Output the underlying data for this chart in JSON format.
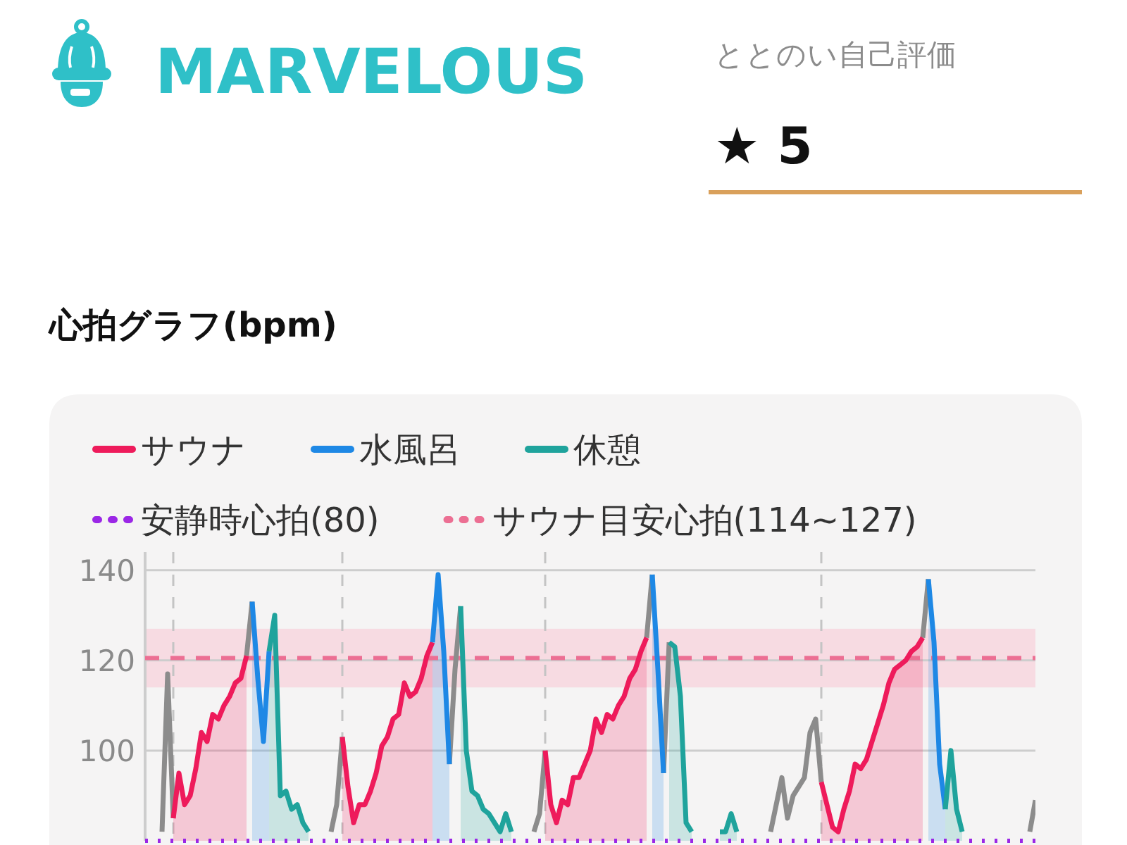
{
  "chart_data": {
    "type": "area",
    "title": "心拍グラフ(bpm)",
    "annotations": [
      "MARVELOUS",
      "ととのい自己評価",
      "★ 5"
    ],
    "categories": [
      null,
      null,
      null,
      null,
      null,
      null,
      null,
      null,
      null,
      null,
      null,
      null,
      null,
      null,
      null,
      null,
      null,
      null,
      null,
      null,
      null,
      null,
      null,
      null,
      null,
      null,
      null,
      null,
      null,
      null,
      null,
      null,
      null,
      null,
      null,
      null,
      null,
      null,
      null,
      null,
      null,
      null,
      null,
      null,
      null,
      null,
      null,
      null,
      null,
      null,
      null,
      null,
      null,
      null,
      null,
      null,
      null,
      null,
      null,
      null,
      null,
      null,
      null,
      null,
      null,
      null,
      null,
      null,
      null,
      null,
      null,
      null,
      null,
      null,
      null,
      null,
      null,
      null,
      null,
      null,
      null,
      null,
      null,
      null,
      null,
      null,
      null,
      null,
      null,
      null,
      null,
      null,
      null,
      null,
      null,
      null,
      null,
      null,
      null,
      null,
      null,
      null,
      null,
      null,
      null,
      null,
      null,
      null,
      null,
      null,
      null,
      null,
      null,
      null,
      null,
      null,
      null,
      null,
      null,
      null,
      null,
      null,
      null,
      null,
      null,
      null,
      null,
      null,
      null,
      null,
      null,
      null,
      null,
      null,
      null,
      null,
      null,
      null,
      null,
      null,
      null,
      null,
      null,
      null,
      null,
      null,
      null,
      null,
      null,
      null,
      null,
      null,
      null,
      null,
      null,
      null,
      null,
      null,
      null
    ],
    "series": [
      {
        "type": "line",
        "color": "#8c8c8c",
        "values": [
          null,
          null,
          null,
          82,
          117,
          85,
          null,
          null,
          null,
          null,
          null,
          null,
          null,
          null,
          null,
          null,
          null,
          null,
          121,
          133,
          null,
          null,
          null,
          null,
          null,
          null,
          null,
          null,
          null,
          null,
          null,
          null,
          null,
          82,
          88,
          103,
          null,
          null,
          null,
          null,
          null,
          null,
          null,
          null,
          null,
          null,
          null,
          null,
          null,
          null,
          null,
          null,
          null,
          null,
          97,
          118,
          132,
          null,
          null,
          null,
          null,
          null,
          null,
          null,
          null,
          null,
          null,
          null,
          null,
          82,
          86,
          100,
          null,
          null,
          null,
          null,
          null,
          null,
          null,
          null,
          null,
          null,
          null,
          null,
          null,
          null,
          null,
          null,
          null,
          125,
          139,
          null,
          95,
          124,
          null,
          null,
          null,
          null,
          null,
          null,
          null,
          null,
          null,
          null,
          null,
          null,
          null,
          null,
          null,
          null,
          null,
          82,
          88,
          94,
          85,
          90,
          92,
          94,
          104,
          107,
          93,
          null,
          null,
          null,
          null,
          null,
          null,
          null,
          null,
          null,
          null,
          null,
          null,
          null,
          null,
          null,
          null,
          null,
          125,
          138,
          null,
          null,
          null,
          null,
          null,
          null,
          null,
          null,
          null,
          null,
          null,
          null,
          null,
          null,
          null,
          null,
          null,
          82,
          89
        ]
      },
      {
        "name": "サウナ",
        "color": "#ee1b5b",
        "values": [
          null,
          null,
          null,
          null,
          null,
          85,
          95,
          88,
          90,
          96,
          104,
          102,
          108,
          107,
          110,
          112,
          115,
          116,
          121,
          null,
          null,
          null,
          null,
          null,
          null,
          null,
          null,
          null,
          null,
          null,
          null,
          null,
          null,
          null,
          null,
          103,
          92,
          84,
          88,
          88,
          91,
          95,
          101,
          103,
          107,
          108,
          115,
          112,
          113,
          116,
          121,
          124,
          null,
          null,
          null,
          null,
          null,
          null,
          null,
          null,
          null,
          null,
          null,
          null,
          null,
          null,
          null,
          null,
          null,
          null,
          null,
          100,
          88,
          84,
          89,
          88,
          94,
          94,
          97,
          100,
          107,
          104,
          108,
          107,
          110,
          112,
          116,
          118,
          122,
          125,
          null,
          null,
          null,
          null,
          null,
          null,
          null,
          null,
          null,
          null,
          null,
          null,
          null,
          null,
          null,
          null,
          null,
          null,
          null,
          null,
          null,
          null,
          null,
          null,
          null,
          null,
          null,
          null,
          null,
          null,
          93,
          88,
          83,
          82,
          87,
          91,
          97,
          96,
          98,
          102,
          106,
          110,
          115,
          118,
          119,
          120,
          122,
          123,
          125,
          null,
          null,
          null,
          null,
          null,
          null,
          null,
          null,
          null,
          null,
          null,
          null,
          null,
          null,
          null,
          null,
          null,
          null,
          null,
          null
        ]
      },
      {
        "name": "水風呂",
        "color": "#1e88e5",
        "values": [
          null,
          null,
          null,
          null,
          null,
          null,
          null,
          null,
          null,
          null,
          null,
          null,
          null,
          null,
          null,
          null,
          null,
          null,
          null,
          133,
          116,
          102,
          122,
          null,
          null,
          null,
          null,
          null,
          null,
          null,
          null,
          null,
          null,
          null,
          null,
          null,
          null,
          null,
          null,
          null,
          null,
          null,
          null,
          null,
          null,
          null,
          null,
          null,
          null,
          null,
          null,
          124,
          139,
          122,
          97,
          null,
          null,
          null,
          null,
          null,
          null,
          null,
          null,
          null,
          null,
          null,
          null,
          null,
          null,
          null,
          null,
          null,
          null,
          null,
          null,
          null,
          null,
          null,
          null,
          null,
          null,
          null,
          null,
          null,
          null,
          null,
          null,
          null,
          null,
          null,
          139,
          118,
          95,
          null,
          null,
          null,
          null,
          null,
          null,
          null,
          null,
          null,
          null,
          null,
          null,
          null,
          null,
          null,
          null,
          null,
          null,
          null,
          null,
          null,
          null,
          null,
          null,
          null,
          null,
          null,
          null,
          null,
          null,
          null,
          null,
          null,
          null,
          null,
          null,
          null,
          null,
          null,
          null,
          null,
          null,
          null,
          null,
          null,
          null,
          138,
          124,
          97,
          87,
          null,
          null,
          null,
          null,
          null,
          null,
          null,
          null,
          null,
          null,
          null,
          null,
          null,
          null,
          null,
          null
        ]
      },
      {
        "name": "休憩",
        "color": "#1fa39c",
        "values": [
          null,
          null,
          null,
          null,
          null,
          null,
          null,
          null,
          null,
          null,
          null,
          null,
          null,
          null,
          null,
          null,
          null,
          null,
          null,
          null,
          null,
          null,
          122,
          130,
          90,
          91,
          87,
          88,
          84,
          82,
          null,
          null,
          null,
          null,
          null,
          null,
          null,
          null,
          null,
          null,
          null,
          null,
          null,
          null,
          null,
          null,
          null,
          null,
          null,
          null,
          null,
          null,
          null,
          null,
          null,
          null,
          132,
          100,
          91,
          90,
          87,
          86,
          84,
          82,
          86,
          82,
          null,
          null,
          null,
          null,
          null,
          null,
          null,
          null,
          null,
          null,
          null,
          null,
          null,
          null,
          null,
          null,
          null,
          null,
          null,
          null,
          null,
          null,
          null,
          null,
          null,
          null,
          null,
          124,
          123,
          112,
          84,
          82,
          null,
          null,
          null,
          null,
          82,
          82,
          86,
          82,
          null,
          null,
          null,
          null,
          null,
          null,
          null,
          null,
          null,
          null,
          null,
          null,
          null,
          null,
          null,
          null,
          null,
          null,
          null,
          null,
          null,
          null,
          null,
          null,
          null,
          null,
          null,
          null,
          null,
          null,
          null,
          null,
          null,
          null,
          null,
          null,
          87,
          100,
          87,
          82,
          null,
          null,
          null,
          null,
          null,
          null,
          null,
          null,
          null,
          null,
          null,
          null,
          null
        ]
      }
    ],
    "ylim": [
      80,
      144
    ],
    "yticks": [
      100,
      120,
      140
    ],
    "grid": "y",
    "legend": "top left",
    "ref_lines": [
      {
        "axis": "y",
        "value": 80,
        "label": "安静時心拍(80)",
        "color": "#9b27e6",
        "line_style": "dotted"
      },
      {
        "axis": "y",
        "value": 120.5,
        "label": "サウナ目安心拍(114~127)",
        "color": "#ec6f93",
        "line_style": "dashed"
      }
    ],
    "bands": [
      {
        "axis": "y",
        "from": 114,
        "to": 127,
        "color": "#f8d4dd"
      }
    ]
  }
}
